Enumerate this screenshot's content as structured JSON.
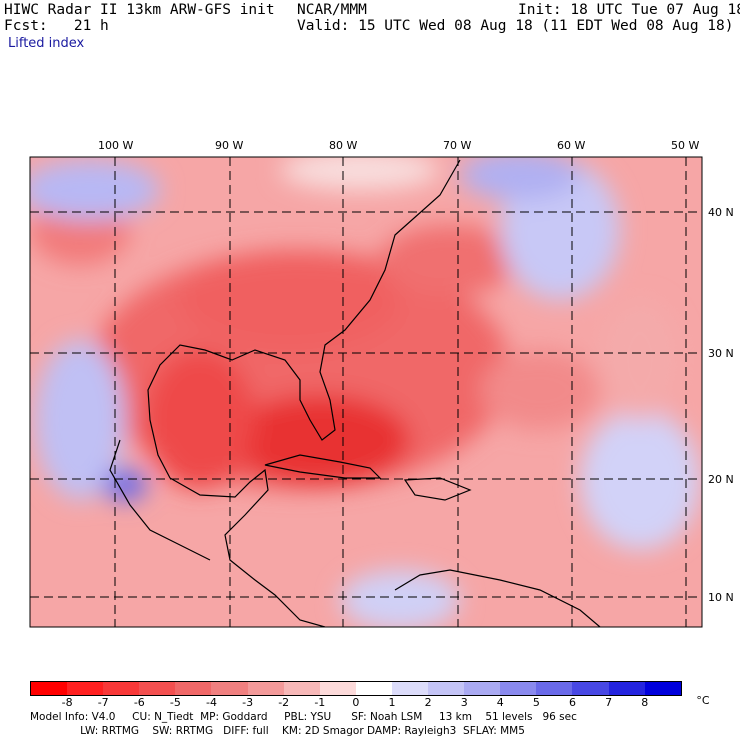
{
  "header": {
    "title": "HIWC Radar II 13km ARW-GFS init",
    "org": "NCAR/MMM",
    "init": "Init: 18 UTC Tue 07 Aug 18",
    "fcst": "Fcst:   21 h",
    "valid": "Valid: 15 UTC Wed 08 Aug 18 (11 EDT Wed 08 Aug 18)",
    "field": "Lifted index"
  },
  "map": {
    "lon_labels": [
      "100 W",
      "90 W",
      "80 W",
      "70 W",
      "60 W",
      "50 W"
    ],
    "lat_labels": [
      "40 N",
      "30 N",
      "20 N",
      "10 N"
    ]
  },
  "colorbar": {
    "ticks": [
      "-8",
      "-7",
      "-6",
      "-5",
      "-4",
      "-3",
      "-2",
      "-1",
      "0",
      "1",
      "2",
      "3",
      "4",
      "5",
      "6",
      "7",
      "8"
    ],
    "unit": "°C",
    "colors": [
      "#ff0000",
      "#ff2020",
      "#f83838",
      "#f35050",
      "#f06868",
      "#f08080",
      "#f39a9a",
      "#f7b8b8",
      "#fcdada",
      "#ffffff",
      "#dcdcfa",
      "#c4c4f6",
      "#aaaaf2",
      "#8a8aee",
      "#6a6ae9",
      "#4848e4",
      "#2424df",
      "#0000dc"
    ]
  },
  "footer": {
    "line1": "Model Info: V4.0     CU: N_Tiedt  MP: Goddard     PBL: YSU      SF: Noah LSM     13 km    51 levels   96 sec",
    "line2": "               LW: RRTMG    SW: RRTMG   DIFF: full    KM: 2D Smagor DAMP: Rayleigh3  SFLAY: MM5"
  }
}
